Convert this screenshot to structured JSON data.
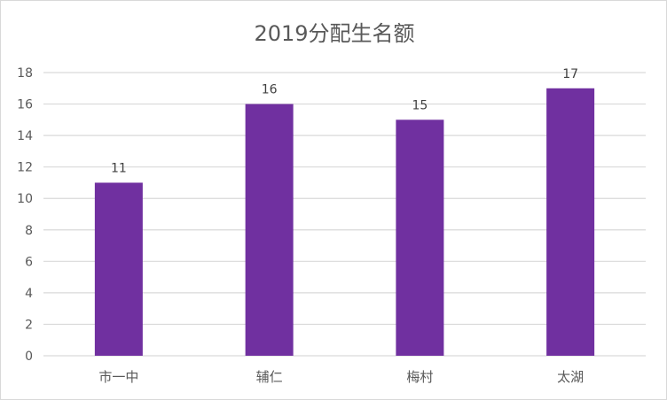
{
  "chart_data": {
    "type": "bar",
    "title": "2019分配生名额",
    "categories": [
      "市一中",
      "辅仁",
      "梅村",
      "太湖"
    ],
    "values": [
      11,
      16,
      15,
      17
    ],
    "xlabel": "",
    "ylabel": "",
    "ylim": [
      0,
      18
    ],
    "yticks": [
      0,
      2,
      4,
      6,
      8,
      10,
      12,
      14,
      16,
      18
    ],
    "grid": true,
    "legend": "none",
    "data_labels": true,
    "bar_color": "#7030A0",
    "grid_color": "#d9d9d9"
  }
}
